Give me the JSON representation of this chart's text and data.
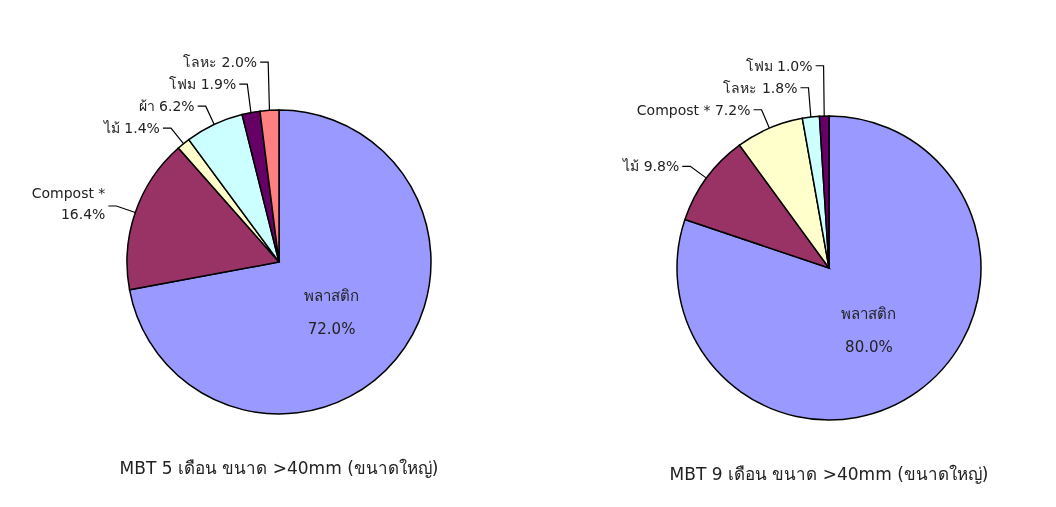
{
  "chart_data": [
    {
      "type": "pie",
      "title": "MBT 5 เดือน ขนาด >40mm (ขนาดใหญ่)",
      "categories": [
        "พลาสติก",
        "Compost *",
        "ไม้",
        "ผ้า",
        "โฟม",
        "โลหะ"
      ],
      "values": [
        72.0,
        16.4,
        1.4,
        6.2,
        1.9,
        2.0
      ],
      "value_labels": [
        "72.0%",
        "16.4%",
        "1.4%",
        "6.2%",
        "1.9%",
        "2.0%"
      ],
      "colors": [
        "#9999ff",
        "#993366",
        "#ffffcc",
        "#ccffff",
        "#660066",
        "#ff8080"
      ]
    },
    {
      "type": "pie",
      "title": "MBT 9 เดือน ขนาด >40mm (ขนาดใหญ่)",
      "categories": [
        "พลาสติก",
        "ไม้",
        "Compost *",
        "โลหะ",
        "โฟม"
      ],
      "values": [
        80.0,
        9.8,
        7.2,
        1.8,
        1.0
      ],
      "value_labels": [
        "80.0%",
        "9.8%",
        "7.2%",
        "1.8%",
        "1.0%"
      ],
      "colors": [
        "#9999ff",
        "#993366",
        "#ffffcc",
        "#ccffff",
        "#660066"
      ]
    }
  ]
}
